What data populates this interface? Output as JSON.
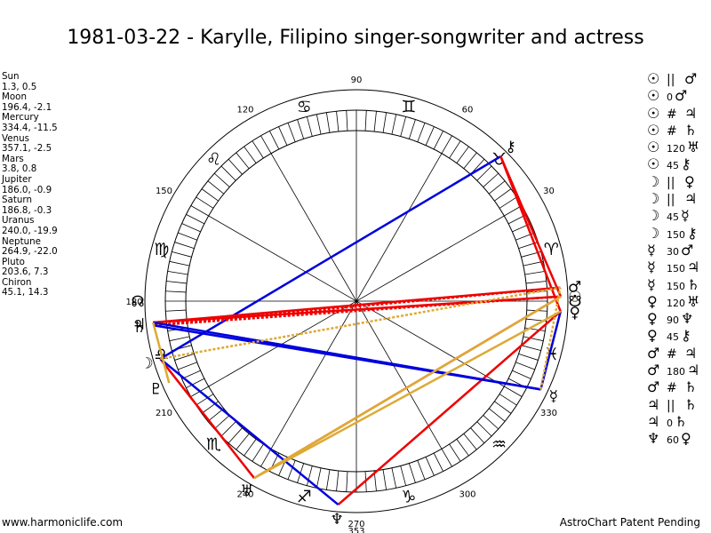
{
  "title": "1981-03-22 - Karylle, Filipino singer-songwriter and actress",
  "footer": {
    "left": "www.harmoniclife.com",
    "right": "AstroChart Patent Pending"
  },
  "positions": [
    {
      "name": "Sun",
      "coords": "1.3, 0.5"
    },
    {
      "name": "Moon",
      "coords": "196.4, -2.1"
    },
    {
      "name": "Mercury",
      "coords": "334.4, -11.5"
    },
    {
      "name": "Venus",
      "coords": "357.1, -2.5"
    },
    {
      "name": "Mars",
      "coords": "3.8, 0.8"
    },
    {
      "name": "Jupiter",
      "coords": "186.0, -0.9"
    },
    {
      "name": "Saturn",
      "coords": "186.8, -0.3"
    },
    {
      "name": "Uranus",
      "coords": "240.0, -19.9"
    },
    {
      "name": "Neptune",
      "coords": "264.9, -22.0"
    },
    {
      "name": "Pluto",
      "coords": "203.6, 7.3"
    },
    {
      "name": "Chiron",
      "coords": "45.1, 14.3"
    }
  ],
  "aspect_list": [
    {
      "p1": "☉",
      "sym": "||",
      "num": "",
      "p2": "♂"
    },
    {
      "p1": "☉",
      "sym": "",
      "num": "0",
      "p2": "♂"
    },
    {
      "p1": "☉",
      "sym": "#",
      "num": "",
      "p2": "♃"
    },
    {
      "p1": "☉",
      "sym": "#",
      "num": "",
      "p2": "♄"
    },
    {
      "p1": "☉",
      "sym": "",
      "num": "120",
      "p2": "♅"
    },
    {
      "p1": "☉",
      "sym": "",
      "num": "45",
      "p2": "⚷"
    },
    {
      "p1": "☽",
      "sym": "||",
      "num": "",
      "p2": "♀"
    },
    {
      "p1": "☽",
      "sym": "||",
      "num": "",
      "p2": "♃"
    },
    {
      "p1": "☽",
      "sym": "",
      "num": "45",
      "p2": "☿"
    },
    {
      "p1": "☽",
      "sym": "",
      "num": "150",
      "p2": "⚷"
    },
    {
      "p1": "☿",
      "sym": "",
      "num": "30",
      "p2": "♂"
    },
    {
      "p1": "☿",
      "sym": "",
      "num": "150",
      "p2": "♃"
    },
    {
      "p1": "☿",
      "sym": "",
      "num": "150",
      "p2": "♄"
    },
    {
      "p1": "♀",
      "sym": "",
      "num": "120",
      "p2": "♅"
    },
    {
      "p1": "♀",
      "sym": "",
      "num": "90",
      "p2": "♆"
    },
    {
      "p1": "♀",
      "sym": "",
      "num": "45",
      "p2": "⚷"
    },
    {
      "p1": "♂",
      "sym": "#",
      "num": "",
      "p2": "♃"
    },
    {
      "p1": "♂",
      "sym": "",
      "num": "180",
      "p2": "♃"
    },
    {
      "p1": "♂",
      "sym": "#",
      "num": "",
      "p2": "♄"
    },
    {
      "p1": "♃",
      "sym": "||",
      "num": "",
      "p2": "♄"
    },
    {
      "p1": "♃",
      "sym": "",
      "num": "0",
      "p2": "♄"
    },
    {
      "p1": "♆",
      "sym": "",
      "num": "60",
      "p2": "♀"
    }
  ],
  "chart_data": {
    "type": "astrological-wheel",
    "degree_labels": [
      "90",
      "120",
      "60",
      "150",
      "30",
      "180",
      "210",
      "330",
      "240",
      "300",
      "270"
    ],
    "zodiac_signs": [
      "♈",
      "♉",
      "♊",
      "♋",
      "♌",
      "♍",
      "♎",
      "♏",
      "♐",
      "♑",
      "♒",
      "♓"
    ],
    "planets": [
      {
        "name": "Sun",
        "glyph": "☉",
        "longitude": 1.3
      },
      {
        "name": "Moon",
        "glyph": "☽",
        "longitude": 196.4
      },
      {
        "name": "Mercury",
        "glyph": "☿",
        "longitude": 334.4
      },
      {
        "name": "Venus",
        "glyph": "♀",
        "longitude": 357.1
      },
      {
        "name": "Mars",
        "glyph": "♂",
        "longitude": 3.8
      },
      {
        "name": "Jupiter",
        "glyph": "♃",
        "longitude": 186.0
      },
      {
        "name": "Saturn",
        "glyph": "♄",
        "longitude": 186.8
      },
      {
        "name": "Uranus",
        "glyph": "♅",
        "longitude": 240.0
      },
      {
        "name": "Neptune",
        "glyph": "♆",
        "longitude": 264.9
      },
      {
        "name": "Pluto",
        "glyph": "♇",
        "longitude": 203.6
      },
      {
        "name": "Chiron",
        "glyph": "⚷",
        "longitude": 45.1
      },
      {
        "name": "North Node",
        "glyph": "☊",
        "longitude": 180.0
      },
      {
        "name": "South Node",
        "glyph": "☋",
        "longitude": 0.0
      }
    ],
    "wheel_extra_label": "353",
    "aspect_lines": [
      {
        "from": "Chiron",
        "to": "Moon",
        "color": "#0000dd",
        "style": "solid"
      },
      {
        "from": "Chiron",
        "to": "Venus",
        "color": "#ee0000",
        "style": "solid"
      },
      {
        "from": "Chiron",
        "to": "Sun",
        "color": "#ee0000",
        "style": "solid"
      },
      {
        "from": "Sun",
        "to": "Jupiter",
        "color": "#ee0000",
        "style": "solid"
      },
      {
        "from": "Mars",
        "to": "Jupiter",
        "color": "#ee0000",
        "style": "solid"
      },
      {
        "from": "Sun",
        "to": "Saturn",
        "color": "#ee0000",
        "style": "dotted"
      },
      {
        "from": "Mars",
        "to": "Saturn",
        "color": "#ee0000",
        "style": "dotted"
      },
      {
        "from": "Moon",
        "to": "Uranus",
        "color": "#ee0000",
        "style": "solid"
      },
      {
        "from": "Sun",
        "to": "Uranus",
        "color": "#ee0000",
        "style": "solid"
      },
      {
        "from": "Venus",
        "to": "Neptune",
        "color": "#ee0000",
        "style": "solid"
      },
      {
        "from": "Jupiter",
        "to": "Mercury",
        "color": "#0000dd",
        "style": "solid"
      },
      {
        "from": "Saturn",
        "to": "Mercury",
        "color": "#0000dd",
        "style": "solid"
      },
      {
        "from": "Venus",
        "to": "Mercury",
        "color": "#0000dd",
        "style": "solid"
      },
      {
        "from": "Neptune",
        "to": "Moon",
        "color": "#0000dd",
        "style": "solid"
      },
      {
        "from": "Uranus",
        "to": "Venus",
        "color": "#ddaa33",
        "style": "solid"
      },
      {
        "from": "Uranus",
        "to": "Sun",
        "color": "#ddaa33",
        "style": "solid"
      },
      {
        "from": "Moon",
        "to": "Mars",
        "color": "#ddaa33",
        "style": "dotted"
      },
      {
        "from": "Jupiter",
        "to": "Pluto",
        "color": "#ddaa33",
        "style": "solid"
      },
      {
        "from": "Mercury",
        "to": "Mars",
        "color": "#ddaa33",
        "style": "dotted"
      }
    ]
  }
}
